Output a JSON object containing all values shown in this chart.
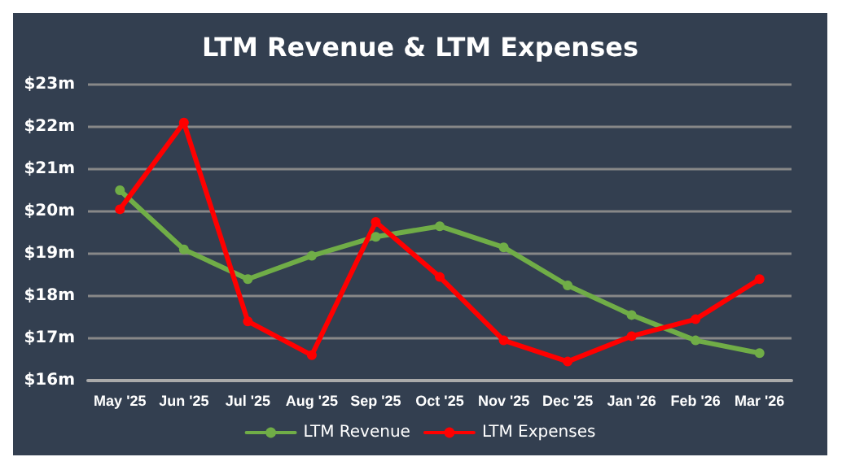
{
  "chart_data": {
    "type": "line",
    "title": "LTM Revenue & LTM Expenses",
    "categories": [
      "May '25",
      "Jun '25",
      "Jul '25",
      "Aug '25",
      "Sep '25",
      "Oct '25",
      "Nov '25",
      "Dec '25",
      "Jan '26",
      "Feb '26",
      "Mar '26"
    ],
    "series": [
      {
        "name": "LTM Revenue",
        "color": "#70ad47",
        "values": [
          20.5,
          19.1,
          18.4,
          18.95,
          19.4,
          19.65,
          19.15,
          18.25,
          17.55,
          16.95,
          16.65
        ]
      },
      {
        "name": "LTM Expenses",
        "color": "#ff0000",
        "values": [
          20.05,
          22.1,
          17.4,
          16.6,
          19.75,
          18.45,
          16.95,
          16.45,
          17.05,
          17.45,
          18.4
        ]
      }
    ],
    "ylim": [
      16,
      23
    ],
    "yticks": [
      {
        "value": 16,
        "label": "$16m"
      },
      {
        "value": 17,
        "label": "$17m"
      },
      {
        "value": 18,
        "label": "$18m"
      },
      {
        "value": 19,
        "label": "$19m"
      },
      {
        "value": 20,
        "label": "$20m"
      },
      {
        "value": 21,
        "label": "$21m"
      },
      {
        "value": 22,
        "label": "$22m"
      },
      {
        "value": 23,
        "label": "$23m"
      }
    ],
    "grid": "y",
    "legend": "bottom",
    "marker": "circle",
    "line_style": "solid"
  }
}
